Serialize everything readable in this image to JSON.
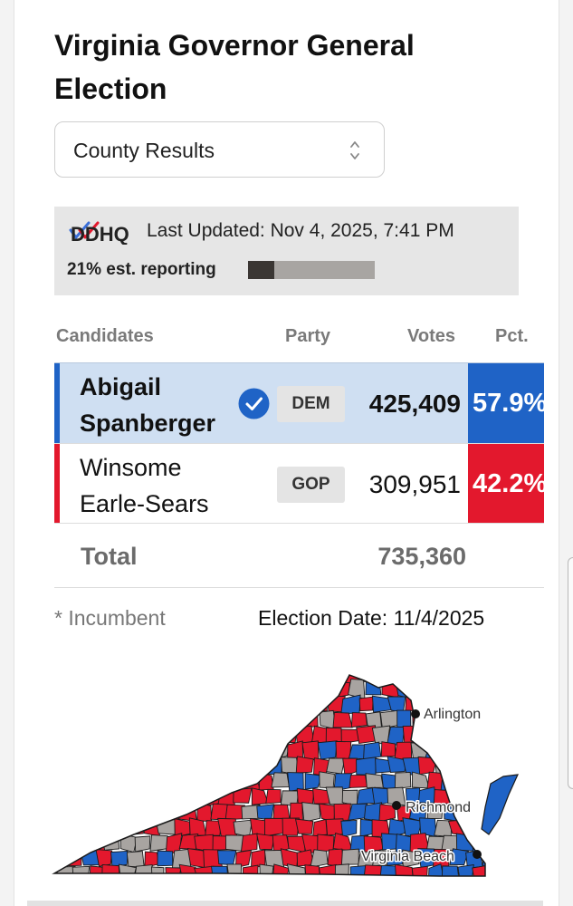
{
  "title": "Virginia Governor General Election",
  "results_view": {
    "selected": "County Results"
  },
  "status": {
    "source_logo": "DDHQ",
    "last_updated": "Last Updated: Nov 4, 2025, 7:41 PM",
    "reporting_text": "21% est. reporting",
    "reporting_fraction": 0.21
  },
  "table": {
    "headers": {
      "candidates": "Candidates",
      "party": "Party",
      "votes": "Votes",
      "pct": "Pct."
    },
    "rows": [
      {
        "line1": "Abigail",
        "line2": "Spanberger",
        "winner": true,
        "party": "DEM",
        "votes": "425,409",
        "pct": "57.9%",
        "color": "#1f63c6"
      },
      {
        "line1": "Winsome",
        "line2": "Earle-Sears",
        "winner": false,
        "party": "GOP",
        "votes": "309,951",
        "pct": "42.2%",
        "color": "#e3182d"
      }
    ],
    "total_label": "Total",
    "total_votes": "735,360"
  },
  "footer": {
    "incumbent_note": "* Incumbent",
    "election_date": "Election Date: 11/4/2025"
  },
  "map": {
    "cities": [
      "Arlington",
      "Richmond",
      "Virginia Beach"
    ],
    "colors": {
      "dem": "#1f63c6",
      "gop": "#e3182d",
      "no_result": "#a8a4a1",
      "border": "#1a1a1a"
    }
  }
}
